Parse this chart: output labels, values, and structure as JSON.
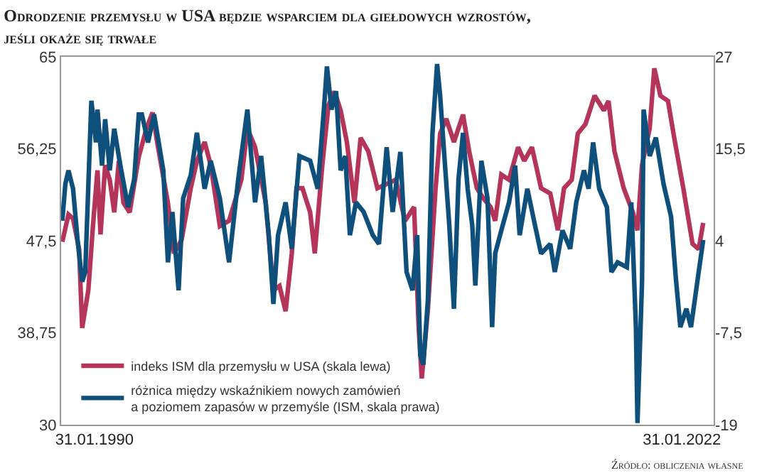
{
  "chart_data": {
    "type": "line",
    "title": "Odrodzenie przemysłu w USA będzie wsparciem dla giełdowych wzrostów,\njeśli okaże się trwałe",
    "annotations": [
      "Źródło: obliczenia własne"
    ],
    "xlim": [
      "1988-04-08",
      "2023-10-26"
    ],
    "xticks": [
      {
        "value": "1990-01-31",
        "label": "31.01.1990"
      },
      {
        "value": "2022-01-31",
        "label": "31.01.2022"
      }
    ],
    "ylim": [
      30,
      65
    ],
    "yticks": [
      30,
      {
        "value": 38.75,
        "label": "38,75"
      },
      {
        "value": 47.5,
        "label": "47,5"
      },
      {
        "value": 56.25,
        "label": "56,25"
      },
      65
    ],
    "y2lim": [
      -19,
      27
    ],
    "y2ticks": [
      -19,
      {
        "value": -7.5,
        "label": "-7,5"
      },
      4,
      {
        "value": 15.5,
        "label": "15,5"
      },
      27
    ],
    "legend": "bottom left",
    "marker": "none",
    "line_style": "solid",
    "series": [
      {
        "name": "indeks ISM dla przemysłu w USA (skala lewa)",
        "color": "#b5345a",
        "axis": "y",
        "x": [
          "1988-05",
          "1988-09",
          "1988-12",
          "1989-04",
          "1989-06",
          "1989-10",
          "1990-01",
          "1990-04",
          "1990-06",
          "1990-09",
          "1990-12",
          "1991-03",
          "1991-06",
          "1991-09",
          "1992-01",
          "1992-07",
          "1992-12",
          "1993-04",
          "1993-07",
          "1994-02",
          "1994-06",
          "1994-11",
          "1995-05",
          "1995-09",
          "1996-02",
          "1996-06",
          "1996-12",
          "1997-06",
          "1998-02",
          "1998-06",
          "1998-11",
          "1999-06",
          "1999-11",
          "2000-03",
          "2000-07",
          "2000-11",
          "2001-02",
          "2001-06",
          "2001-11",
          "2002-02",
          "2002-07",
          "2002-11",
          "2003-03",
          "2003-07",
          "2003-11",
          "2004-04",
          "2004-08",
          "2005-01",
          "2005-07",
          "2006-01",
          "2006-07",
          "2007-01",
          "2007-07",
          "2007-10",
          "2007-12",
          "2008-04",
          "2008-09",
          "2008-12",
          "2009-04",
          "2009-09",
          "2010-03",
          "2010-07",
          "2010-12",
          "2011-04",
          "2011-09",
          "2011-12",
          "2012-04",
          "2012-09",
          "2013-03",
          "2013-07",
          "2013-12",
          "2014-06",
          "2014-12",
          "2015-05",
          "2015-09",
          "2016-02",
          "2016-06",
          "2016-11",
          "2017-05",
          "2017-11",
          "2018-02",
          "2018-06",
          "2018-12",
          "2019-06",
          "2019-09",
          "2019-12",
          "2020-05",
          "2020-08",
          "2020-12",
          "2021-05",
          "2021-09",
          "2022-03",
          "2022-09",
          "2023-01",
          "2023-04"
        ],
        "values": [
          47.4,
          50.0,
          49.6,
          46.7,
          39.2,
          42.8,
          48.9,
          54.2,
          48.1,
          54.7,
          53.3,
          50.2,
          55.1,
          51.1,
          50.2,
          55.5,
          58.2,
          59.7,
          56.9,
          51.1,
          46.3,
          47.6,
          52.5,
          55.1,
          56.9,
          54.7,
          48.9,
          49.4,
          53.3,
          58.2,
          56.4,
          51.1,
          42.8,
          43.2,
          40.8,
          46.3,
          52.5,
          52.5,
          50.2,
          46.3,
          54.7,
          60.4,
          61.7,
          59.9,
          56.9,
          51.1,
          57.3,
          56.0,
          52.5,
          52.9,
          53.3,
          49.4,
          50.7,
          39.2,
          34.4,
          41.0,
          52.5,
          57.7,
          59.1,
          56.9,
          59.5,
          56.0,
          52.5,
          51.6,
          50.7,
          49.4,
          53.8,
          53.3,
          56.4,
          55.1,
          56.4,
          52.5,
          52.0,
          48.5,
          52.5,
          53.3,
          57.7,
          58.6,
          61.3,
          59.9,
          60.8,
          56.0,
          52.5,
          50.2,
          48.5,
          54.7,
          58.2,
          63.9,
          61.3,
          60.8,
          57.3,
          52.5,
          47.2,
          46.7,
          49.2
        ]
      },
      {
        "name": "różnica między wskaźnikiem nowych zamówień\na poziomem zapasów w przemyśle (ISM, skala prawa)",
        "color": "#0f4f7c",
        "axis": "y2",
        "x": [
          "1988-05",
          "1988-07",
          "1988-09",
          "1988-12",
          "1989-03",
          "1989-06",
          "1989-08",
          "1989-11",
          "1989-12",
          "1990-03",
          "1990-04",
          "1990-07",
          "1990-09",
          "1990-12",
          "1991-03",
          "1991-07",
          "1991-12",
          "1992-04",
          "1992-07",
          "1992-09",
          "1993-01",
          "1993-05",
          "1993-11",
          "1994-02",
          "1994-05",
          "1994-09",
          "1994-12",
          "1995-05",
          "1995-09",
          "1996-02",
          "1996-06",
          "1996-12",
          "1997-06",
          "1997-12",
          "1998-06",
          "1998-11",
          "1999-03",
          "1999-08",
          "1999-11",
          "2000-02",
          "2000-07",
          "2000-11",
          "2001-04",
          "2001-11",
          "2002-04",
          "2002-08",
          "2002-10",
          "2003-01",
          "2003-04",
          "2003-07",
          "2003-10",
          "2004-01",
          "2004-05",
          "2004-10",
          "2005-04",
          "2005-08",
          "2006-01",
          "2006-05",
          "2006-10",
          "2007-02",
          "2007-06",
          "2007-09",
          "2007-11",
          "2008-01",
          "2008-04",
          "2008-07",
          "2008-10",
          "2008-12",
          "2009-03",
          "2009-06",
          "2009-09",
          "2009-12",
          "2010-03",
          "2010-06",
          "2010-09",
          "2010-11",
          "2011-03",
          "2011-07",
          "2011-10",
          "2011-12",
          "2012-04",
          "2012-09",
          "2013-01",
          "2013-04",
          "2013-09",
          "2014-02",
          "2014-06",
          "2014-12",
          "2015-03",
          "2015-08",
          "2016-01",
          "2016-05",
          "2016-10",
          "2017-01",
          "2017-04",
          "2017-08",
          "2018-01",
          "2018-04",
          "2018-08",
          "2019-02",
          "2019-05",
          "2019-08",
          "2019-09",
          "2019-12",
          "2020-01",
          "2020-05",
          "2020-09",
          "2021-02",
          "2021-07",
          "2021-10",
          "2022-01",
          "2022-05",
          "2022-08",
          "2023-01",
          "2023-04"
        ],
        "values": [
          6.5,
          11.1,
          12.8,
          10.5,
          4.1,
          -1.1,
          0.1,
          16.3,
          21.5,
          16.3,
          20.4,
          13.4,
          19.2,
          12.8,
          18.0,
          13.4,
          8.2,
          11.7,
          19.8,
          19.8,
          16.3,
          19.8,
          12.8,
          1.3,
          7.6,
          -2.2,
          9.3,
          12.2,
          17.5,
          10.5,
          14.0,
          9.3,
          1.3,
          11.7,
          20.4,
          8.8,
          14.6,
          4.7,
          -3.9,
          4.7,
          8.8,
          3.0,
          14.6,
          14.0,
          10.5,
          20.4,
          25.8,
          20.4,
          22.7,
          12.8,
          14.6,
          4.7,
          8.8,
          7.6,
          4.7,
          3.6,
          15.7,
          7.6,
          15.1,
          0.1,
          -2.2,
          4.7,
          -10.3,
          -11.5,
          -3.4,
          17.5,
          26.1,
          22.1,
          14.0,
          5.9,
          -4.5,
          11.7,
          17.5,
          10.5,
          5.9,
          -1.6,
          14.0,
          9.3,
          -6.8,
          2.4,
          5.3,
          8.8,
          13.4,
          4.7,
          10.5,
          5.9,
          2.4,
          3.6,
          0.1,
          5.3,
          3.0,
          8.8,
          12.8,
          10.5,
          16.3,
          10.5,
          8.2,
          0.1,
          1.3,
          0.7,
          8.8,
          -6.8,
          -18.8,
          -1.1,
          20.4,
          14.6,
          16.9,
          11.1,
          7.0,
          -0.5,
          -6.8,
          -4.5,
          -6.8,
          0.1,
          4.1
        ]
      }
    ]
  }
}
